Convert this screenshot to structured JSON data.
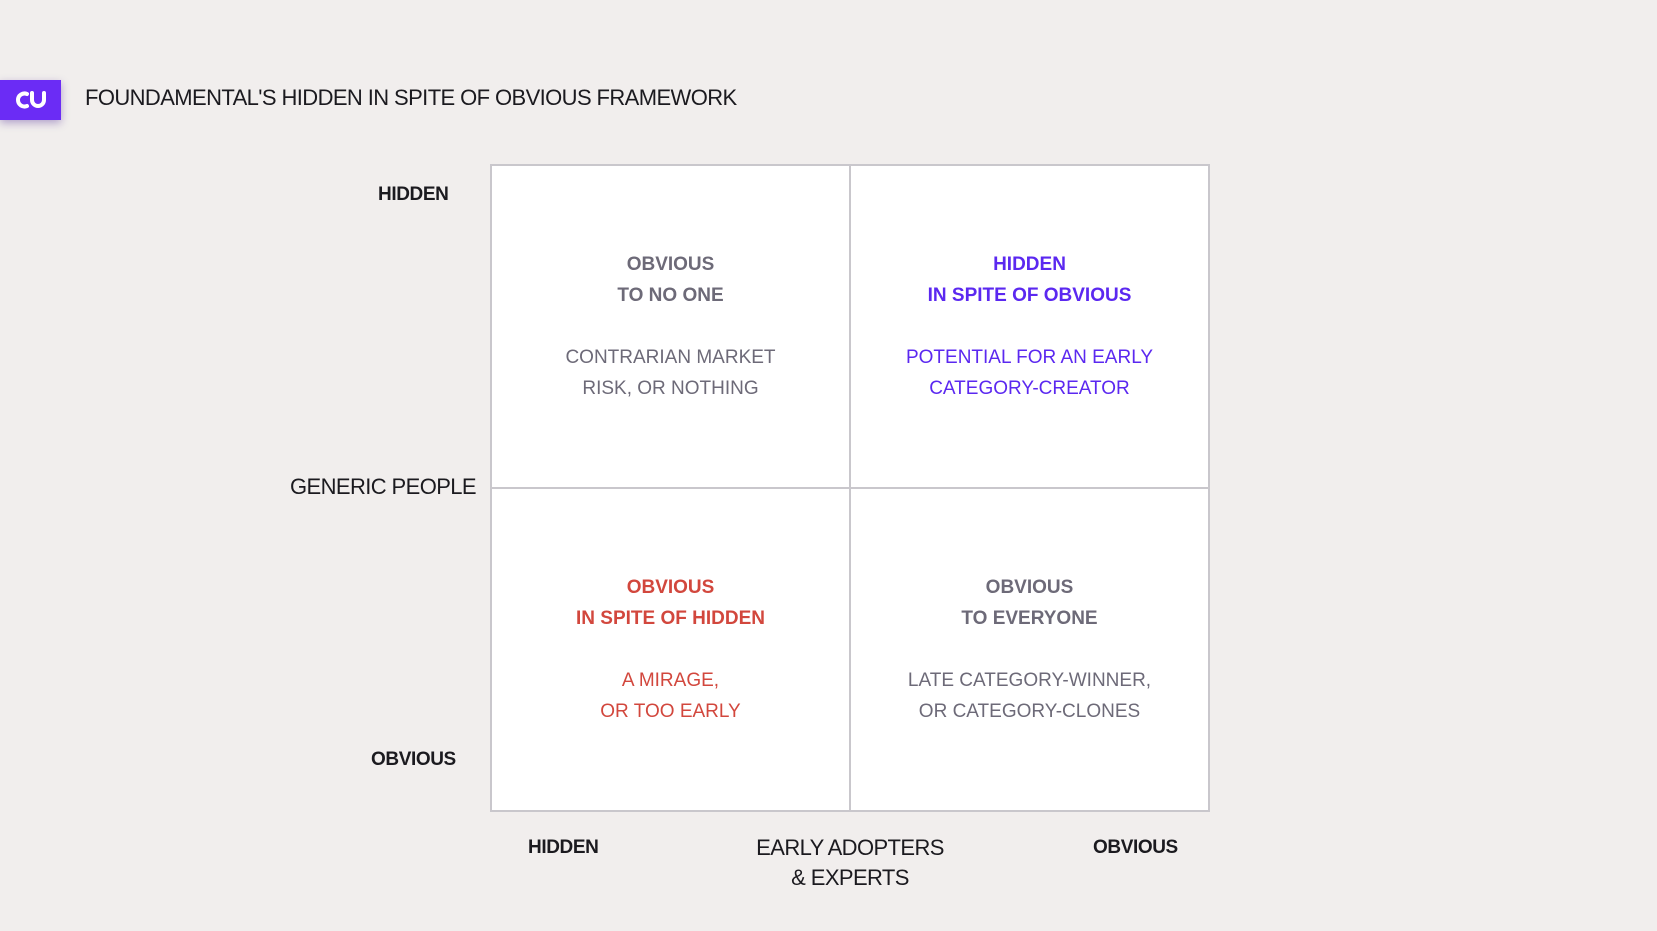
{
  "header": {
    "logo_icon": "fundamental-logo-icon",
    "title": "FOUNDAMENTAL'S HIDDEN IN SPITE OF OBVIOUS FRAMEWORK"
  },
  "y_axis": {
    "title": "GENERIC PEOPLE",
    "top_label": "HIDDEN",
    "bottom_label": "OBVIOUS"
  },
  "x_axis": {
    "title_line1": "EARLY ADOPTERS",
    "title_line2": "& EXPERTS",
    "left_label": "HIDDEN",
    "right_label": "OBVIOUS"
  },
  "quadrants": {
    "top_left": {
      "heading_line1": "OBVIOUS",
      "heading_line2": "TO NO ONE",
      "desc_line1": "CONTRARIAN MARKET",
      "desc_line2": "RISK, OR NOTHING",
      "color": "#6d6a78"
    },
    "top_right": {
      "heading_line1": "HIDDEN",
      "heading_line2": "IN SPITE OF OBVIOUS",
      "desc_line1": "POTENTIAL FOR AN EARLY",
      "desc_line2": "CATEGORY-CREATOR",
      "color": "#5b28f0"
    },
    "bottom_left": {
      "heading_line1": "OBVIOUS",
      "heading_line2": "IN SPITE OF HIDDEN",
      "desc_line1": "A MIRAGE,",
      "desc_line2": "OR TOO EARLY",
      "color": "#d2473d"
    },
    "bottom_right": {
      "heading_line1": "OBVIOUS",
      "heading_line2": "TO EVERYONE",
      "desc_line1": "LATE CATEGORY-WINNER,",
      "desc_line2": "OR CATEGORY-CLONES",
      "color": "#6d6a78"
    }
  },
  "colors": {
    "brand": "#6b2cf5",
    "background": "#f1eeed"
  }
}
